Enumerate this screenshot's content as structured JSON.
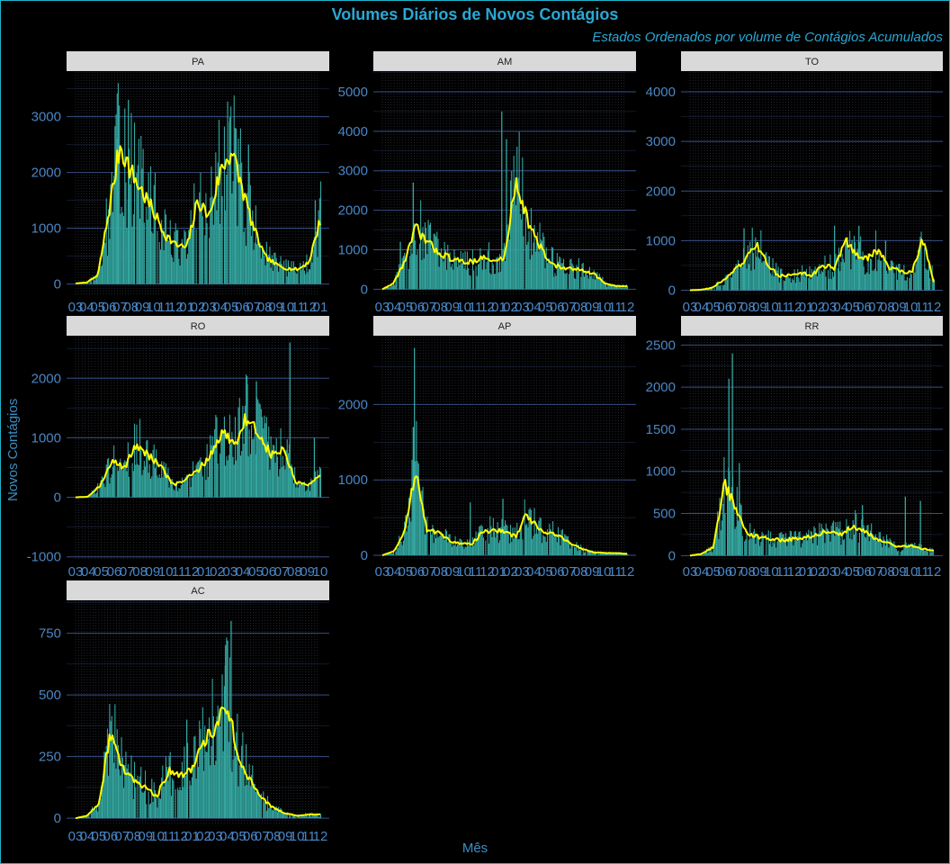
{
  "title": "Volumes Diários de Novos Contágios",
  "subtitle": "Estados Ordenados por volume de Contágios Acumulados",
  "xlabel": "Mês",
  "ylabel": "Novos Contágios",
  "colors": {
    "background": "#000000",
    "bars": "#34a6a0",
    "line": "#ffff00",
    "strip": "#d9d9d9",
    "grid": "#3a4f88",
    "axis_text": "#4a86c5",
    "title": "#2aa8d4"
  },
  "chart_data": [
    {
      "type": "bar",
      "panel": "PA",
      "ylim": [
        -200,
        3800
      ],
      "yticks": [
        0,
        1000,
        2000,
        3000
      ],
      "xticks": [
        "03",
        "04",
        "05",
        "06",
        "07",
        "08",
        "09",
        "10",
        "11",
        "12",
        "01",
        "02",
        "03",
        "04",
        "05",
        "06",
        "07",
        "08",
        "09",
        "10",
        "11",
        "12",
        "01"
      ],
      "trend": [
        10,
        30,
        150,
        1300,
        2500,
        2000,
        1650,
        1300,
        900,
        700,
        650,
        1500,
        1200,
        2000,
        2400,
        1700,
        1000,
        500,
        350,
        280,
        260,
        400,
        1150
      ],
      "spikes": [
        [
          4.7,
          3300
        ],
        [
          3.7,
          2600
        ],
        [
          13.8,
          2900
        ],
        [
          14.3,
          2800
        ],
        [
          15.5,
          2500
        ],
        [
          21.5,
          1500
        ]
      ]
    },
    {
      "type": "bar",
      "panel": "AM",
      "ylim": [
        -150,
        5500
      ],
      "yticks": [
        0,
        1000,
        2000,
        3000,
        4000,
        5000
      ],
      "xticks": [
        "03",
        "04",
        "05",
        "06",
        "07",
        "08",
        "09",
        "10",
        "11",
        "12",
        "01",
        "02",
        "03",
        "04",
        "05",
        "06",
        "07",
        "08",
        "09",
        "10",
        "11",
        "12"
      ],
      "trend": [
        0,
        150,
        700,
        1550,
        1200,
        950,
        800,
        700,
        700,
        800,
        700,
        800,
        2800,
        1800,
        1150,
        700,
        550,
        500,
        500,
        400,
        150,
        80,
        80
      ],
      "spikes": [
        [
          2.6,
          2700
        ],
        [
          10.2,
          4500
        ],
        [
          10.6,
          3800
        ],
        [
          1.5,
          1200
        ]
      ]
    },
    {
      "type": "bar",
      "panel": "TO",
      "ylim": [
        -100,
        4400
      ],
      "yticks": [
        0,
        1000,
        2000,
        3000,
        4000
      ],
      "xticks": [
        "03",
        "04",
        "05",
        "06",
        "07",
        "08",
        "09",
        "10",
        "11",
        "12",
        "01",
        "02",
        "03",
        "04",
        "05",
        "06",
        "07",
        "08",
        "09",
        "10",
        "11",
        "12"
      ],
      "trend": [
        0,
        10,
        50,
        200,
        400,
        600,
        950,
        500,
        300,
        300,
        350,
        300,
        500,
        450,
        1000,
        700,
        650,
        800,
        450,
        400,
        350,
        1050,
        150
      ],
      "spikes": [
        [
          4.6,
          1250
        ],
        [
          12.4,
          1300
        ],
        [
          14.5,
          1300
        ],
        [
          16.8,
          1000
        ]
      ]
    },
    {
      "type": "bar",
      "panel": "RO",
      "ylim": [
        -1050,
        2700
      ],
      "yticks": [
        -1000,
        0,
        1000,
        2000
      ],
      "xticks": [
        "03",
        "04",
        "05",
        "06",
        "07",
        "08",
        "09",
        "10",
        "11",
        "12",
        "01",
        "02",
        "03",
        "04",
        "05",
        "06",
        "07",
        "08",
        "09",
        "10"
      ],
      "trend": [
        0,
        10,
        200,
        600,
        500,
        900,
        700,
        500,
        200,
        300,
        450,
        700,
        1100,
        900,
        1350,
        1050,
        700,
        800,
        250,
        200,
        350
      ],
      "spikes": [
        [
          16.6,
          2600
        ],
        [
          18.5,
          1000
        ],
        [
          13.3,
          1900
        ],
        [
          14.0,
          1950
        ]
      ]
    },
    {
      "type": "bar",
      "panel": "AP",
      "ylim": [
        -60,
        2900
      ],
      "yticks": [
        0,
        1000,
        2000
      ],
      "xticks": [
        "03",
        "04",
        "05",
        "06",
        "07",
        "08",
        "09",
        "10",
        "11",
        "12",
        "01",
        "02",
        "03",
        "04",
        "05",
        "06",
        "07",
        "08",
        "09",
        "10",
        "11",
        "12"
      ],
      "trend": [
        0,
        50,
        300,
        1150,
        350,
        300,
        200,
        150,
        150,
        300,
        350,
        300,
        250,
        550,
        350,
        300,
        250,
        150,
        80,
        40,
        30,
        30,
        20
      ],
      "spikes": [
        [
          2.7,
          2750
        ],
        [
          2.6,
          1700
        ],
        [
          7.5,
          700
        ],
        [
          10.3,
          750
        ]
      ]
    },
    {
      "type": "bar",
      "panel": "RR",
      "ylim": [
        -50,
        2600
      ],
      "yticks": [
        0,
        500,
        1000,
        1500,
        2000,
        2500
      ],
      "xticks": [
        "03",
        "04",
        "05",
        "06",
        "07",
        "08",
        "09",
        "10",
        "11",
        "12",
        "01",
        "02",
        "03",
        "04",
        "05",
        "06",
        "07",
        "08",
        "09",
        "10",
        "11",
        "12"
      ],
      "trend": [
        0,
        20,
        100,
        850,
        550,
        250,
        220,
        200,
        180,
        200,
        220,
        250,
        300,
        250,
        350,
        300,
        200,
        150,
        100,
        120,
        80,
        60
      ],
      "spikes": [
        [
          3.6,
          2400
        ],
        [
          3.3,
          2100
        ],
        [
          4.2,
          1100
        ],
        [
          18.5,
          700
        ],
        [
          19.8,
          650
        ],
        [
          14.8,
          600
        ]
      ]
    },
    {
      "type": "bar",
      "panel": "AC",
      "ylim": [
        -25,
        880
      ],
      "yticks": [
        0,
        250,
        500,
        750
      ],
      "xticks": [
        "03",
        "04",
        "05",
        "06",
        "07",
        "08",
        "09",
        "10",
        "11",
        "12",
        "01",
        "02",
        "03",
        "04",
        "05",
        "06",
        "07",
        "08",
        "09",
        "10",
        "11",
        "12"
      ],
      "trend": [
        0,
        10,
        60,
        350,
        200,
        150,
        120,
        90,
        200,
        180,
        200,
        300,
        380,
        470,
        250,
        150,
        80,
        40,
        20,
        10,
        15,
        15
      ],
      "spikes": [
        [
          13.3,
          800
        ],
        [
          13.0,
          720
        ],
        [
          9.5,
          400
        ],
        [
          12.8,
          620
        ]
      ]
    }
  ]
}
